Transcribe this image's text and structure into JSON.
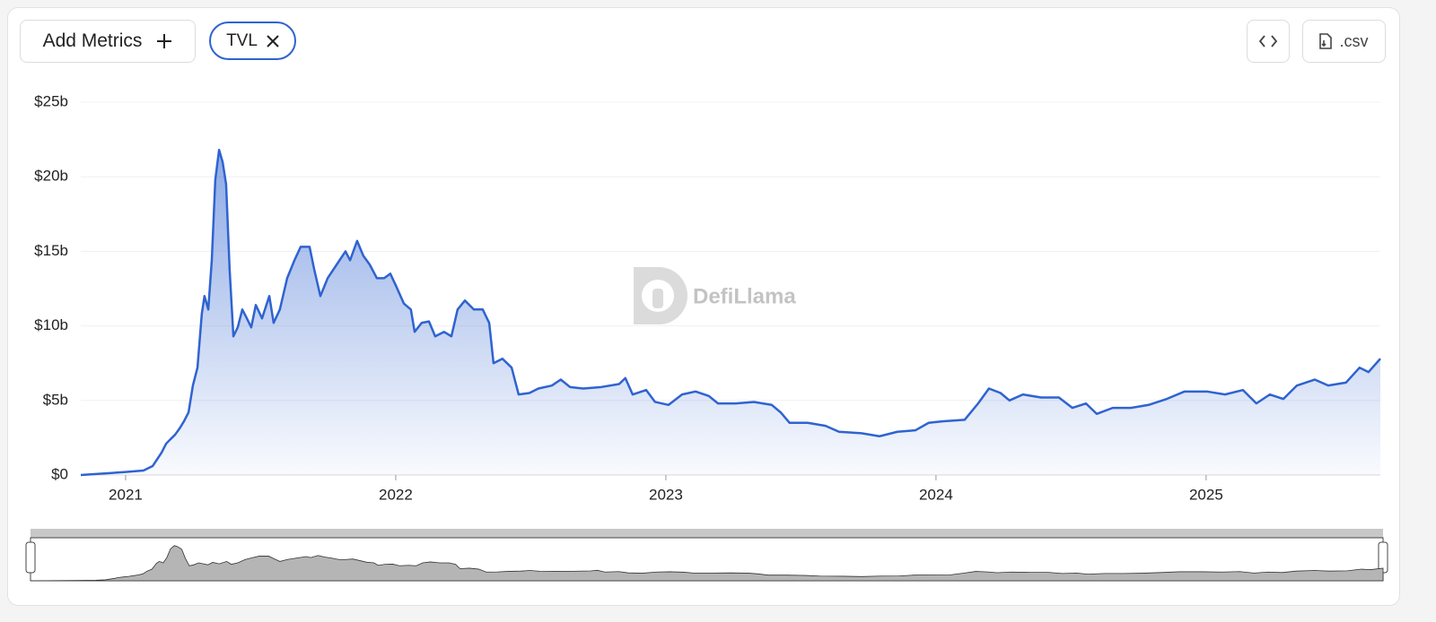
{
  "toolbar": {
    "add_metrics": "Add Metrics",
    "csv": ".csv"
  },
  "watermark": "DefiLlama",
  "chart_data": {
    "type": "area",
    "x": [
      2020.834,
      2021.0,
      2021.066,
      2021.1,
      2021.133,
      2021.15,
      2021.166,
      2021.183,
      2021.199,
      2021.216,
      2021.233,
      2021.249,
      2021.266,
      2021.282,
      2021.292,
      2021.306,
      2021.319,
      2021.332,
      2021.346,
      2021.359,
      2021.372,
      2021.385,
      2021.399,
      2021.415,
      2021.432,
      2021.449,
      2021.465,
      2021.482,
      2021.505,
      2021.532,
      2021.548,
      2021.571,
      2021.598,
      2021.625,
      2021.648,
      2021.681,
      2021.698,
      2021.721,
      2021.748,
      2021.781,
      2021.814,
      2021.831,
      2021.857,
      2021.88,
      2021.904,
      2021.93,
      2021.957,
      2021.98,
      2022.003,
      2022.03,
      2022.056,
      2022.07,
      2022.096,
      2022.123,
      2022.146,
      2022.179,
      2022.206,
      2022.229,
      2022.256,
      2022.289,
      2022.322,
      2022.346,
      2022.362,
      2022.395,
      2022.429,
      2022.455,
      2022.495,
      2022.528,
      2022.578,
      2022.611,
      2022.645,
      2022.694,
      2022.761,
      2022.827,
      2022.85,
      2022.877,
      2022.927,
      2022.96,
      2023.01,
      2023.06,
      2023.11,
      2023.159,
      2023.193,
      2023.259,
      2023.326,
      2023.392,
      2023.425,
      2023.458,
      2023.525,
      2023.591,
      2023.641,
      2023.724,
      2023.791,
      2023.857,
      2023.924,
      2023.973,
      2024.023,
      2024.106,
      2024.156,
      2024.196,
      2024.239,
      2024.272,
      2024.322,
      2024.389,
      2024.455,
      2024.505,
      2024.555,
      2024.595,
      2024.654,
      2024.721,
      2024.787,
      2024.854,
      2024.92,
      2025.003,
      2025.07,
      2025.136,
      2025.186,
      2025.236,
      2025.286,
      2025.336,
      2025.402,
      2025.452,
      2025.518,
      2025.568,
      2025.601,
      2025.645
    ],
    "series": [
      {
        "name": "TVL",
        "color": "#2f63d0",
        "values": [
          0,
          0.2,
          0.3,
          0.6,
          1.5,
          2.1,
          2.4,
          2.7,
          3.1,
          3.6,
          4.2,
          6.0,
          7.2,
          10.8,
          12.0,
          11.1,
          14.4,
          19.8,
          21.8,
          21.0,
          19.5,
          13.8,
          9.3,
          9.9,
          11.1,
          10.5,
          9.9,
          11.4,
          10.5,
          12.0,
          10.2,
          11.1,
          13.2,
          14.4,
          15.3,
          15.3,
          13.8,
          12.0,
          13.2,
          14.1,
          15.0,
          14.4,
          15.7,
          14.7,
          14.1,
          13.2,
          13.2,
          13.5,
          12.6,
          11.5,
          11.1,
          9.6,
          10.2,
          10.3,
          9.3,
          9.6,
          9.3,
          11.1,
          11.7,
          11.1,
          11.1,
          10.2,
          7.5,
          7.8,
          7.2,
          5.4,
          5.5,
          5.8,
          6.0,
          6.4,
          5.9,
          5.8,
          5.9,
          6.1,
          6.5,
          5.4,
          5.7,
          4.9,
          4.7,
          5.4,
          5.6,
          5.3,
          4.8,
          4.8,
          4.9,
          4.7,
          4.2,
          3.5,
          3.5,
          3.3,
          2.9,
          2.8,
          2.6,
          2.9,
          3.0,
          3.5,
          3.6,
          3.7,
          4.8,
          5.8,
          5.5,
          5.0,
          5.4,
          5.2,
          5.2,
          4.5,
          4.8,
          4.1,
          4.5,
          4.5,
          4.7,
          5.1,
          5.6,
          5.6,
          5.4,
          5.7,
          4.8,
          5.4,
          5.1,
          6.0,
          6.4,
          6.0,
          6.2,
          7.2,
          6.9,
          7.8
        ]
      }
    ],
    "xlim": [
      2020.834,
      2025.645
    ],
    "xticks": [
      2021,
      2022,
      2023,
      2024,
      2025
    ],
    "ylim": [
      0,
      25
    ],
    "yticks": [
      {
        "value": 0,
        "label": "$0"
      },
      {
        "value": 5,
        "label": "$5b"
      },
      {
        "value": 10,
        "label": "$10b"
      },
      {
        "value": 15,
        "label": "$15b"
      },
      {
        "value": 20,
        "label": "$20b"
      },
      {
        "value": 25,
        "label": "$25b"
      }
    ],
    "grid": true
  }
}
